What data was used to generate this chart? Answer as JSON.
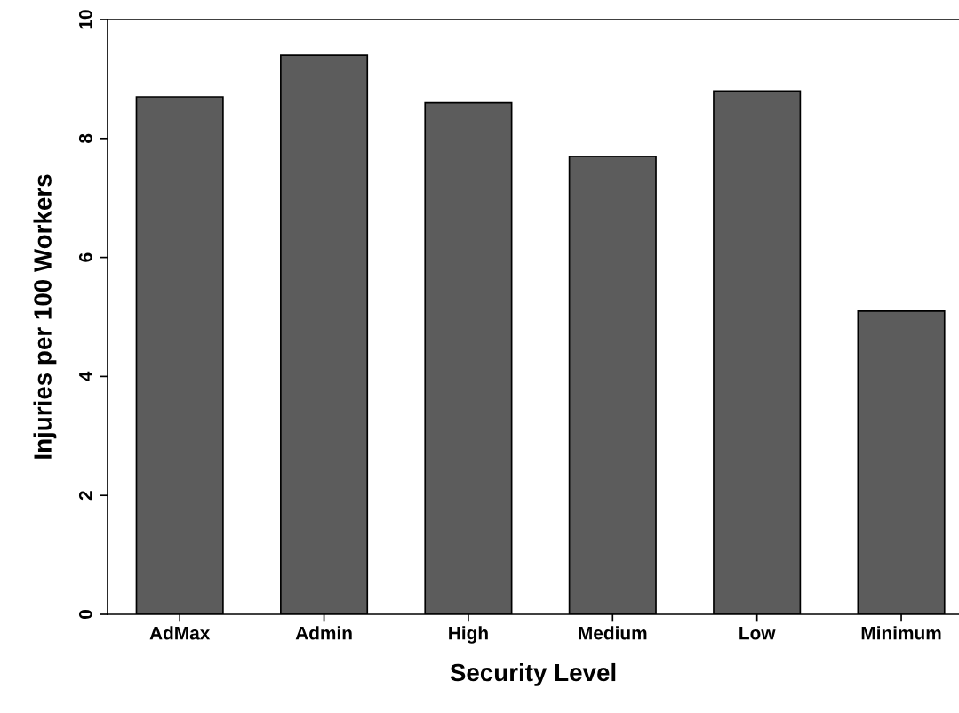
{
  "chart_data": {
    "type": "bar",
    "xlabel": "Security Level",
    "ylabel": "Injuries per 100 Workers",
    "categories": [
      "AdMax",
      "Admin",
      "High",
      "Medium",
      "Low",
      "Minimum"
    ],
    "values": [
      8.7,
      9.4,
      8.6,
      7.7,
      8.8,
      5.1
    ],
    "color": "#5c5c5c",
    "ylim": [
      0,
      10
    ],
    "yticks": [
      0,
      2,
      4,
      6,
      8,
      10
    ],
    "grid": false
  }
}
